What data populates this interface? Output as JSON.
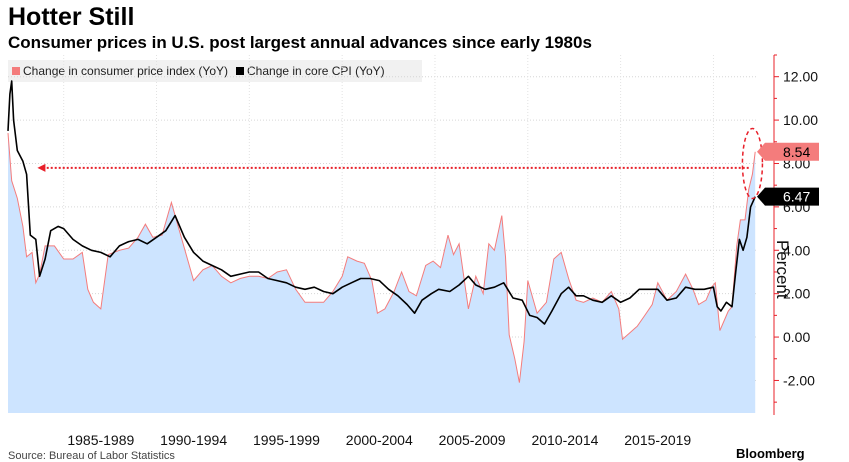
{
  "title": "Hotter Still",
  "subtitle": "Consumer prices in U.S. post largest annual advances since early 1980s",
  "brand": "Bloomberg",
  "source_text": "Source: Bureau of Labor Statistics",
  "chart_data": {
    "type": "area",
    "title": "Hotter Still",
    "subtitle": "Consumer prices in U.S. post largest annual advances since early 1980s",
    "ylabel": "Percent",
    "xlabel": "",
    "ylim": [
      -3.5,
      13.0
    ],
    "xlim": [
      1982.0,
      2022.4
    ],
    "y_ticks": [
      12,
      10,
      8,
      6,
      4,
      2,
      0,
      -2
    ],
    "y_tick_labels": [
      "12.00",
      "10.00",
      "8.00",
      "6.00",
      "4.00",
      "2.00",
      "0.00",
      "-2.00"
    ],
    "x_tick_labels": [
      {
        "label": "1985-1989",
        "x": 1987.0
      },
      {
        "label": "1990-1994",
        "x": 1992.0
      },
      {
        "label": "1995-1999",
        "x": 1997.0
      },
      {
        "label": "2000-2004",
        "x": 2002.0
      },
      {
        "label": "2005-2009",
        "x": 2007.0
      },
      {
        "label": "2010-2014",
        "x": 2012.0
      },
      {
        "label": "2015-2019",
        "x": 2017.0
      }
    ],
    "grid": true,
    "legend_position": "top-left",
    "series": [
      {
        "name": "Change in consumer price index (YoY)",
        "kind": "area",
        "fill_color": "#cde4ff",
        "line_color": "#f47c7c",
        "points": [
          [
            1982.0,
            9.4
          ],
          [
            1982.2,
            7.2
          ],
          [
            1982.5,
            6.4
          ],
          [
            1982.8,
            5.1
          ],
          [
            1983.0,
            3.7
          ],
          [
            1983.3,
            3.9
          ],
          [
            1983.5,
            2.5
          ],
          [
            1983.7,
            2.9
          ],
          [
            1984.0,
            4.2
          ],
          [
            1984.5,
            4.2
          ],
          [
            1985.0,
            3.6
          ],
          [
            1985.5,
            3.6
          ],
          [
            1986.0,
            3.9
          ],
          [
            1986.3,
            2.2
          ],
          [
            1986.6,
            1.6
          ],
          [
            1987.0,
            1.3
          ],
          [
            1987.4,
            3.8
          ],
          [
            1988.0,
            4.0
          ],
          [
            1988.5,
            4.1
          ],
          [
            1989.0,
            4.6
          ],
          [
            1989.4,
            5.2
          ],
          [
            1989.8,
            4.6
          ],
          [
            1990.3,
            4.7
          ],
          [
            1990.8,
            6.2
          ],
          [
            1991.2,
            5.0
          ],
          [
            1991.6,
            3.8
          ],
          [
            1992.0,
            2.6
          ],
          [
            1992.5,
            3.1
          ],
          [
            1993.0,
            3.3
          ],
          [
            1993.5,
            2.8
          ],
          [
            1994.0,
            2.5
          ],
          [
            1994.5,
            2.7
          ],
          [
            1995.0,
            2.8
          ],
          [
            1995.5,
            2.8
          ],
          [
            1996.0,
            2.7
          ],
          [
            1996.5,
            3.0
          ],
          [
            1997.0,
            3.1
          ],
          [
            1997.5,
            2.2
          ],
          [
            1998.0,
            1.6
          ],
          [
            1998.5,
            1.6
          ],
          [
            1999.0,
            1.6
          ],
          [
            1999.5,
            2.1
          ],
          [
            2000.0,
            2.8
          ],
          [
            2000.3,
            3.7
          ],
          [
            2000.8,
            3.5
          ],
          [
            2001.2,
            3.4
          ],
          [
            2001.6,
            2.6
          ],
          [
            2001.9,
            1.1
          ],
          [
            2002.3,
            1.3
          ],
          [
            2002.8,
            2.1
          ],
          [
            2003.2,
            3.0
          ],
          [
            2003.6,
            2.1
          ],
          [
            2004.0,
            1.9
          ],
          [
            2004.5,
            3.3
          ],
          [
            2004.9,
            3.5
          ],
          [
            2005.3,
            3.2
          ],
          [
            2005.7,
            4.7
          ],
          [
            2006.0,
            3.8
          ],
          [
            2006.3,
            4.3
          ],
          [
            2006.8,
            1.3
          ],
          [
            2007.2,
            2.8
          ],
          [
            2007.6,
            2.0
          ],
          [
            2007.9,
            4.3
          ],
          [
            2008.2,
            4.0
          ],
          [
            2008.6,
            5.6
          ],
          [
            2008.8,
            3.7
          ],
          [
            2009.0,
            0.1
          ],
          [
            2009.3,
            -1.0
          ],
          [
            2009.55,
            -2.1
          ],
          [
            2009.8,
            -0.2
          ],
          [
            2010.0,
            2.6
          ],
          [
            2010.5,
            1.1
          ],
          [
            2011.0,
            1.6
          ],
          [
            2011.4,
            3.6
          ],
          [
            2011.8,
            3.9
          ],
          [
            2012.2,
            2.7
          ],
          [
            2012.6,
            1.7
          ],
          [
            2013.0,
            1.6
          ],
          [
            2013.5,
            1.8
          ],
          [
            2014.0,
            1.6
          ],
          [
            2014.5,
            2.1
          ],
          [
            2014.9,
            1.3
          ],
          [
            2015.1,
            -0.1
          ],
          [
            2015.5,
            0.2
          ],
          [
            2015.9,
            0.5
          ],
          [
            2016.3,
            1.0
          ],
          [
            2016.7,
            1.5
          ],
          [
            2017.0,
            2.5
          ],
          [
            2017.5,
            1.7
          ],
          [
            2018.0,
            2.1
          ],
          [
            2018.5,
            2.9
          ],
          [
            2018.9,
            2.2
          ],
          [
            2019.2,
            1.5
          ],
          [
            2019.6,
            1.7
          ],
          [
            2019.9,
            2.3
          ],
          [
            2020.1,
            2.5
          ],
          [
            2020.35,
            0.3
          ],
          [
            2020.5,
            0.6
          ],
          [
            2020.8,
            1.2
          ],
          [
            2021.0,
            1.4
          ],
          [
            2021.25,
            4.2
          ],
          [
            2021.45,
            5.4
          ],
          [
            2021.7,
            5.4
          ],
          [
            2021.9,
            6.8
          ],
          [
            2022.1,
            7.5
          ],
          [
            2022.25,
            8.54
          ]
        ]
      },
      {
        "name": "Change in core CPI (YoY)",
        "kind": "line",
        "line_color": "#000000",
        "points": [
          [
            1982.0,
            9.5
          ],
          [
            1982.1,
            11.2
          ],
          [
            1982.2,
            11.8
          ],
          [
            1982.3,
            10.0
          ],
          [
            1982.5,
            8.6
          ],
          [
            1982.8,
            8.1
          ],
          [
            1983.0,
            7.5
          ],
          [
            1983.2,
            4.7
          ],
          [
            1983.5,
            4.5
          ],
          [
            1983.7,
            2.8
          ],
          [
            1984.0,
            3.6
          ],
          [
            1984.3,
            4.9
          ],
          [
            1984.7,
            5.1
          ],
          [
            1985.0,
            5.0
          ],
          [
            1985.5,
            4.5
          ],
          [
            1986.0,
            4.2
          ],
          [
            1986.5,
            4.0
          ],
          [
            1987.0,
            3.9
          ],
          [
            1987.5,
            3.7
          ],
          [
            1988.0,
            4.2
          ],
          [
            1988.5,
            4.4
          ],
          [
            1989.0,
            4.5
          ],
          [
            1989.5,
            4.3
          ],
          [
            1990.0,
            4.6
          ],
          [
            1990.5,
            4.9
          ],
          [
            1991.0,
            5.6
          ],
          [
            1991.5,
            4.6
          ],
          [
            1992.0,
            3.9
          ],
          [
            1992.5,
            3.5
          ],
          [
            1993.0,
            3.3
          ],
          [
            1993.5,
            3.1
          ],
          [
            1994.0,
            2.8
          ],
          [
            1994.5,
            2.9
          ],
          [
            1995.0,
            3.0
          ],
          [
            1995.5,
            3.0
          ],
          [
            1996.0,
            2.7
          ],
          [
            1996.5,
            2.6
          ],
          [
            1997.0,
            2.5
          ],
          [
            1997.5,
            2.3
          ],
          [
            1998.0,
            2.2
          ],
          [
            1998.5,
            2.3
          ],
          [
            1999.0,
            2.1
          ],
          [
            1999.5,
            2.0
          ],
          [
            2000.0,
            2.3
          ],
          [
            2000.5,
            2.5
          ],
          [
            2001.0,
            2.7
          ],
          [
            2001.5,
            2.7
          ],
          [
            2002.0,
            2.6
          ],
          [
            2002.5,
            2.2
          ],
          [
            2003.0,
            1.9
          ],
          [
            2003.5,
            1.5
          ],
          [
            2003.9,
            1.1
          ],
          [
            2004.3,
            1.7
          ],
          [
            2004.8,
            2.0
          ],
          [
            2005.2,
            2.2
          ],
          [
            2005.8,
            2.1
          ],
          [
            2006.3,
            2.4
          ],
          [
            2006.8,
            2.8
          ],
          [
            2007.2,
            2.4
          ],
          [
            2007.7,
            2.2
          ],
          [
            2008.2,
            2.3
          ],
          [
            2008.7,
            2.5
          ],
          [
            2009.2,
            1.8
          ],
          [
            2009.7,
            1.7
          ],
          [
            2010.1,
            1.0
          ],
          [
            2010.5,
            0.9
          ],
          [
            2010.9,
            0.6
          ],
          [
            2011.3,
            1.2
          ],
          [
            2011.8,
            2.0
          ],
          [
            2012.2,
            2.3
          ],
          [
            2012.6,
            1.9
          ],
          [
            2013.0,
            1.9
          ],
          [
            2013.5,
            1.7
          ],
          [
            2014.0,
            1.6
          ],
          [
            2014.5,
            1.9
          ],
          [
            2015.0,
            1.6
          ],
          [
            2015.5,
            1.8
          ],
          [
            2016.0,
            2.2
          ],
          [
            2016.5,
            2.2
          ],
          [
            2017.0,
            2.2
          ],
          [
            2017.5,
            1.7
          ],
          [
            2018.0,
            1.8
          ],
          [
            2018.5,
            2.3
          ],
          [
            2019.0,
            2.2
          ],
          [
            2019.5,
            2.2
          ],
          [
            2020.0,
            2.3
          ],
          [
            2020.2,
            1.4
          ],
          [
            2020.4,
            1.2
          ],
          [
            2020.7,
            1.6
          ],
          [
            2021.0,
            1.4
          ],
          [
            2021.2,
            3.0
          ],
          [
            2021.4,
            4.5
          ],
          [
            2021.6,
            4.0
          ],
          [
            2021.8,
            4.6
          ],
          [
            2022.0,
            6.0
          ],
          [
            2022.25,
            6.47
          ]
        ]
      }
    ],
    "annotations": [
      {
        "kind": "dotted-arrow",
        "y": 7.8,
        "from_x": 2021.9,
        "to_x": 1983.8,
        "color": "#e8202a"
      },
      {
        "kind": "dashed-ellipse",
        "cx": 2022.1,
        "cy": 8.0,
        "color": "#e8202a"
      }
    ],
    "last_value_labels": [
      {
        "series": "Change in consumer price index (YoY)",
        "text": "8.54",
        "y": 8.54,
        "bg": "#f47c7c",
        "fg": "#000000"
      },
      {
        "series": "Change in core CPI (YoY)",
        "text": "6.47",
        "y": 6.47,
        "bg": "#000000",
        "fg": "#ffffff"
      }
    ]
  }
}
